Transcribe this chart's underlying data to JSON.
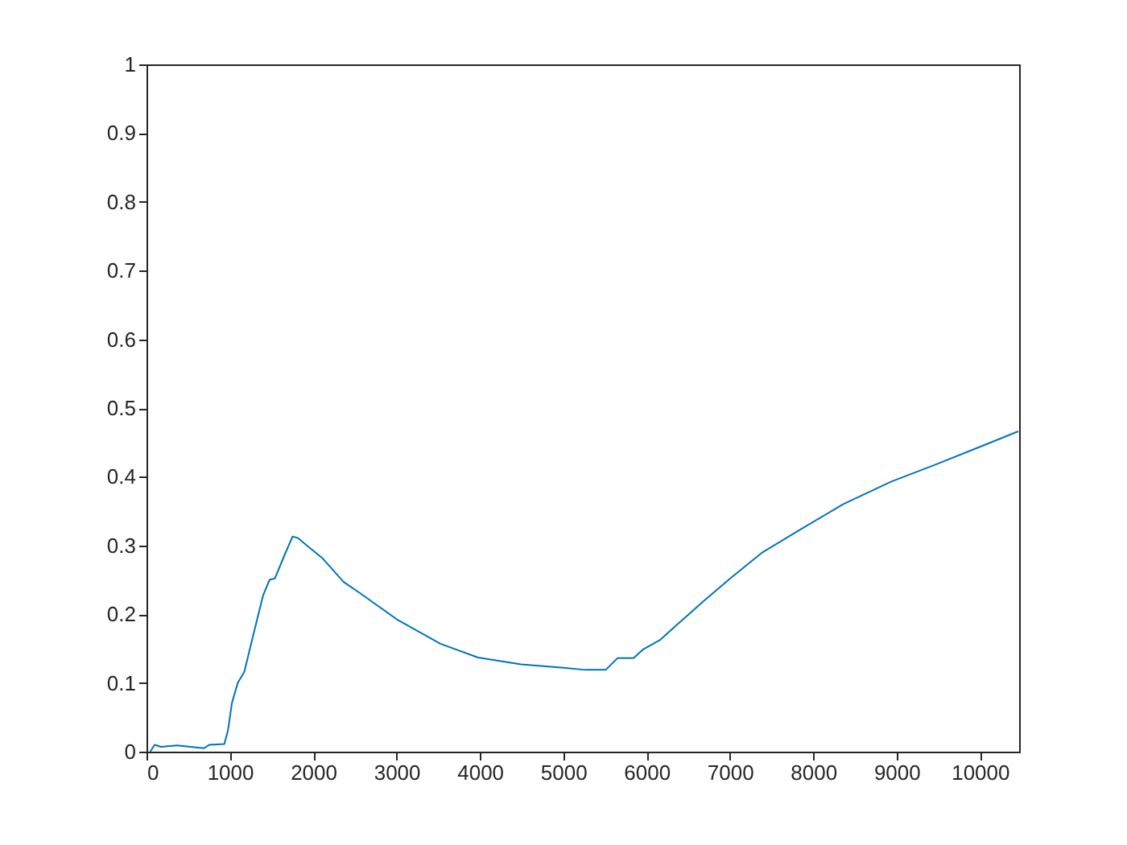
{
  "chart_data": {
    "type": "line",
    "xlim": [
      0,
      10470
    ],
    "ylim": [
      0,
      1
    ],
    "xticks": [
      0,
      1000,
      2000,
      3000,
      4000,
      5000,
      6000,
      7000,
      8000,
      9000,
      10000
    ],
    "yticks": [
      0,
      0.1,
      0.2,
      0.3,
      0.4,
      0.5,
      0.6,
      0.7,
      0.8,
      0.9,
      1
    ],
    "grid": false,
    "marker": "none",
    "line_style": "solid",
    "series": [
      {
        "color": "#0072bd",
        "x": [
          45,
          97,
          174,
          367,
          690,
          754,
          934,
          979,
          1025,
          1095,
          1173,
          1302,
          1398,
          1476,
          1540,
          1656,
          1753,
          1817,
          1914,
          2107,
          2365,
          2558,
          3010,
          3525,
          3976,
          4491,
          5000,
          5264,
          5510,
          5650,
          5844,
          5960,
          6167,
          6360,
          6683,
          7004,
          7391,
          7843,
          8357,
          8937,
          9453,
          9969,
          10460
        ],
        "values": [
          0,
          0.01,
          0.007,
          0.009,
          0.005,
          0.01,
          0.011,
          0.032,
          0.071,
          0.1,
          0.116,
          0.18,
          0.227,
          0.25,
          0.252,
          0.286,
          0.313,
          0.311,
          0.301,
          0.282,
          0.247,
          0.231,
          0.192,
          0.157,
          0.137,
          0.127,
          0.122,
          0.119,
          0.119,
          0.136,
          0.136,
          0.149,
          0.163,
          0.184,
          0.219,
          0.252,
          0.29,
          0.323,
          0.36,
          0.393,
          0.417,
          0.442,
          0.466
        ]
      }
    ]
  }
}
